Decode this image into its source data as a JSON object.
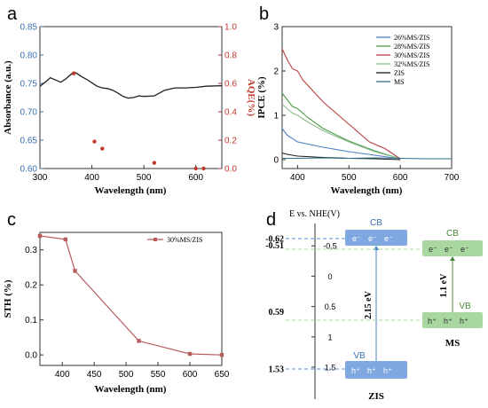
{
  "chart_data": [
    {
      "panel": "a",
      "type": "line",
      "xlabel": "Wavelength (nm)",
      "ylabel": "Absorbance (a.u.)",
      "y2label": "AQE(%)",
      "xlim": [
        300,
        650
      ],
      "ylim": [
        0.6,
        0.85
      ],
      "y2lim": [
        0.0,
        1.0
      ],
      "xticks": [
        "300",
        "400",
        "500",
        "600"
      ],
      "yticks": [
        "0.60",
        "0.65",
        "0.70",
        "0.75",
        "0.80",
        "0.85"
      ],
      "y2ticks": [
        "0.0",
        "0.2",
        "0.4",
        "0.6",
        "0.8",
        "1.0"
      ],
      "grid": false,
      "colors": {
        "absorbance": "#1f1f1f",
        "aqe": "#c0392b",
        "axis_right": "#c0392b",
        "axis_left": "#3a6fb0"
      },
      "series": [
        {
          "x": [
            300,
            310,
            320,
            330,
            340,
            350,
            360,
            365,
            370,
            380,
            390,
            400,
            410,
            420,
            430,
            440,
            450,
            460,
            470,
            480,
            490,
            500,
            520,
            540,
            560,
            580,
            600,
            620,
            650
          ],
          "values": [
            0.745,
            0.752,
            0.76,
            0.756,
            0.752,
            0.758,
            0.766,
            0.77,
            0.768,
            0.762,
            0.757,
            0.751,
            0.745,
            0.742,
            0.741,
            0.738,
            0.733,
            0.727,
            0.724,
            0.725,
            0.728,
            0.727,
            0.728,
            0.738,
            0.742,
            0.742,
            0.743,
            0.745,
            0.746
          ]
        },
        {
          "axis": "right",
          "points": [
            [
              365,
              0.67
            ],
            [
              405,
              0.19
            ],
            [
              420,
              0.14
            ],
            [
              520,
              0.04
            ],
            [
              600,
              0.0
            ],
            [
              615,
              0.0
            ]
          ]
        }
      ]
    },
    {
      "panel": "b",
      "type": "line",
      "xlabel": "Wavelength (nm)",
      "ylabel": "IPCE (%)",
      "xlim": [
        370,
        700
      ],
      "ylim": [
        -0.2,
        3.0
      ],
      "xticks": [
        "400",
        "500",
        "600",
        "700"
      ],
      "yticks": [
        "0",
        "1",
        "2",
        "3"
      ],
      "legend": "top-right",
      "series": [
        {
          "name": "26%MS/ZIS",
          "color": "#4a7fc0",
          "x": [
            370,
            380,
            400,
            450,
            500,
            550,
            600
          ],
          "values": [
            0.7,
            0.55,
            0.4,
            0.28,
            0.18,
            0.1,
            0.02
          ]
        },
        {
          "name": "28%MS/ZIS",
          "color": "#4a9a4a",
          "x": [
            370,
            380,
            390,
            400,
            420,
            450,
            500,
            550,
            600
          ],
          "values": [
            1.5,
            1.35,
            1.2,
            1.15,
            0.95,
            0.7,
            0.42,
            0.2,
            0.02
          ]
        },
        {
          "name": "30%MS/ZIS",
          "color": "#b84040",
          "x": [
            370,
            380,
            390,
            400,
            410,
            450,
            500,
            540,
            570,
            600
          ],
          "values": [
            2.5,
            2.25,
            2.05,
            2.0,
            1.8,
            1.3,
            0.8,
            0.4,
            0.25,
            0.02
          ]
        },
        {
          "name": "32%MS/ZIS",
          "color": "#8fbc8f",
          "x": [
            370,
            380,
            390,
            400,
            420,
            450,
            500,
            550,
            600
          ],
          "values": [
            1.25,
            1.15,
            1.05,
            1.0,
            0.85,
            0.65,
            0.4,
            0.18,
            0.02
          ]
        },
        {
          "name": "ZIS",
          "color": "#1a1a1a",
          "x": [
            370,
            380,
            400,
            450,
            500,
            550,
            600
          ],
          "values": [
            0.15,
            0.12,
            0.08,
            0.05,
            0.03,
            0.02,
            0.0
          ]
        },
        {
          "name": "MS",
          "color": "#2e6e8a",
          "x": [
            370,
            400,
            450,
            500,
            550,
            600,
            650,
            700
          ],
          "values": [
            0.03,
            0.03,
            0.04,
            0.03,
            0.04,
            0.03,
            0.02,
            0.02
          ]
        }
      ]
    },
    {
      "panel": "c",
      "type": "line",
      "xlabel": "Wavelength (nm)",
      "ylabel": "STH (%)",
      "xlim": [
        365,
        650
      ],
      "ylim": [
        -0.03,
        0.35
      ],
      "xticks": [
        "400",
        "450",
        "500",
        "550",
        "600",
        "650"
      ],
      "yticks": [
        "0.0",
        "0.1",
        "0.2",
        "0.3"
      ],
      "legend": "top-right",
      "series": [
        {
          "name": "30%MS/ZIS",
          "color": "#b85c5c",
          "x": [
            365,
            405,
            420,
            520,
            600,
            650
          ],
          "values": [
            0.34,
            0.33,
            0.24,
            0.04,
            0.003,
            0.0
          ]
        }
      ]
    },
    {
      "panel": "d",
      "type": "diagram",
      "axis_title": "E vs. NHE(V)",
      "axis_ticks": [
        "-0.5",
        "0",
        "0.5",
        "1",
        "1.5"
      ],
      "left_levels": [
        "-0.62",
        "-0.51",
        "0.59",
        "1.53"
      ],
      "zis": {
        "name": "ZIS",
        "cb": "CB",
        "vb": "VB",
        "electrons": [
          "e⁻",
          "e⁻",
          "e⁻"
        ],
        "holes": [
          "h⁺",
          "h⁺",
          "h⁺"
        ],
        "gap": "2.15 eV",
        "color": "#7fa8e0"
      },
      "ms": {
        "name": "MS",
        "cb": "CB",
        "vb": "VB",
        "electrons": [
          "e⁻",
          "e⁻",
          "e⁻"
        ],
        "holes": [
          "h⁺",
          "h⁺",
          "h⁺"
        ],
        "gap": "1.1 eV",
        "color": "#a8d8a0"
      }
    }
  ],
  "panel_labels": [
    "a",
    "b",
    "c",
    "d"
  ]
}
